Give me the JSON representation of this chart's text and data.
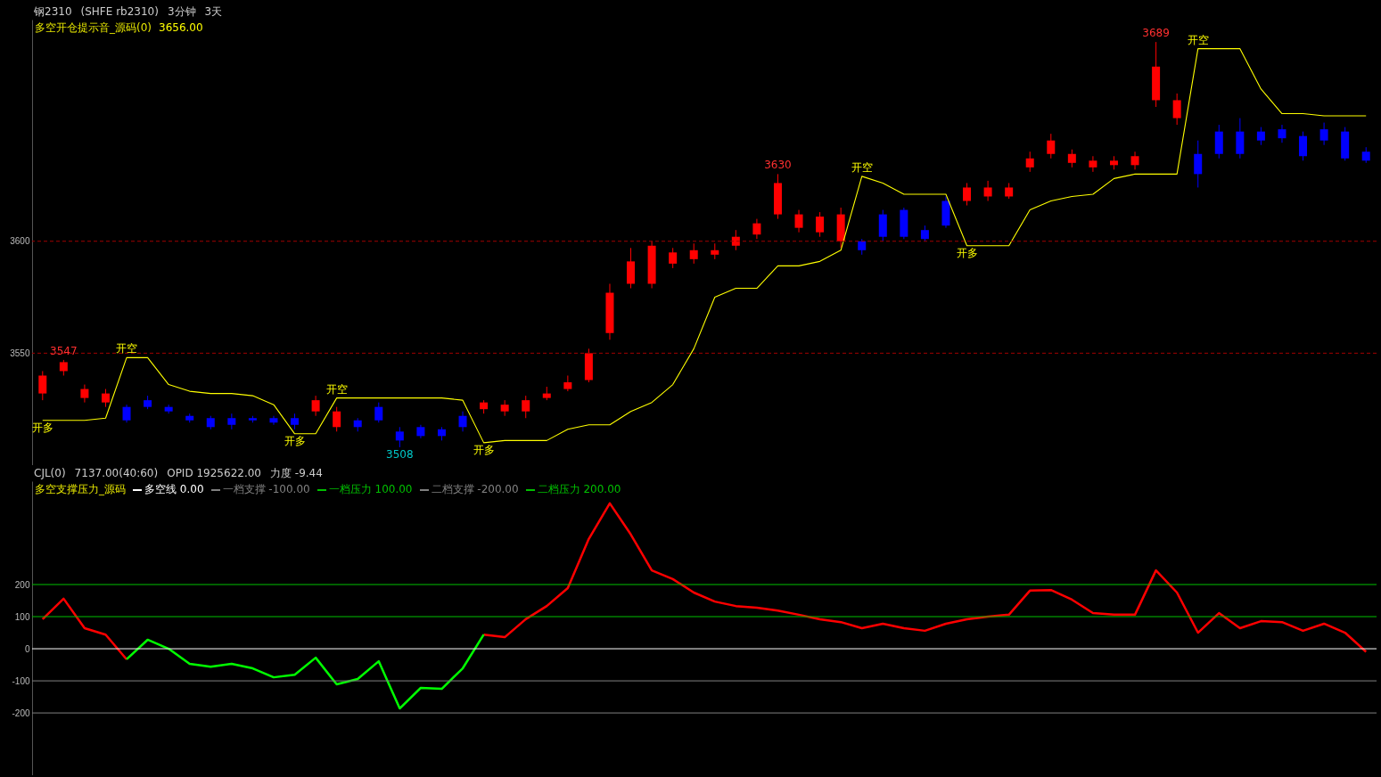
{
  "chart_data": [
    {
      "type": "candlestick",
      "title": "多空开仓提示音_源码(0)",
      "subtitle": "3656.00",
      "categories": [
        null,
        null,
        null,
        null,
        null,
        null,
        null,
        null,
        null,
        null,
        null,
        null,
        null,
        null,
        null,
        null,
        null,
        null,
        null,
        null,
        null,
        null,
        null,
        null,
        null,
        null,
        null,
        null,
        null,
        null,
        null,
        null,
        null,
        null,
        null,
        null,
        null,
        null,
        null,
        null,
        null,
        null,
        null,
        null,
        null,
        null,
        null,
        null,
        null,
        null,
        null,
        null,
        null,
        null,
        null,
        null,
        null,
        null,
        null,
        null,
        null,
        null,
        null,
        null
      ],
      "ohlc": [
        [
          3532,
          3542,
          3529,
          3540
        ],
        [
          3542,
          3547,
          3540,
          3546
        ],
        [
          3530,
          3536,
          3528,
          3534
        ],
        [
          3528,
          3534,
          3526,
          3532
        ],
        [
          3526,
          3527,
          3519,
          3520
        ],
        [
          3529,
          3531,
          3525,
          3526
        ],
        [
          3526,
          3527,
          3523,
          3524
        ],
        [
          3522,
          3523,
          3519,
          3520
        ],
        [
          3521,
          3522,
          3516,
          3517
        ],
        [
          3521,
          3523,
          3516,
          3518
        ],
        [
          3521,
          3522,
          3519,
          3520
        ],
        [
          3521,
          3522,
          3518,
          3519
        ],
        [
          3521,
          3523,
          3516,
          3518
        ],
        [
          3524,
          3531,
          3522,
          3529
        ],
        [
          3517,
          3526,
          3515,
          3524
        ],
        [
          3520,
          3521,
          3515,
          3517
        ],
        [
          3526,
          3528,
          3519,
          3520
        ],
        [
          3515,
          3517,
          3508,
          3511
        ],
        [
          3517,
          3518,
          3512,
          3513
        ],
        [
          3516,
          3517,
          3511,
          3513
        ],
        [
          3522,
          3524,
          3515,
          3517
        ],
        [
          3525,
          3529,
          3523,
          3528
        ],
        [
          3524,
          3529,
          3522,
          3527
        ],
        [
          3524,
          3531,
          3521,
          3529
        ],
        [
          3530,
          3535,
          3529,
          3532
        ],
        [
          3534,
          3540,
          3533,
          3537
        ],
        [
          3538,
          3552,
          3537,
          3550
        ],
        [
          3559,
          3581,
          3556,
          3577
        ],
        [
          3581,
          3597,
          3579,
          3591
        ],
        [
          3581,
          3600,
          3579,
          3598
        ],
        [
          3590,
          3597,
          3588,
          3595
        ],
        [
          3592,
          3599,
          3590,
          3596
        ],
        [
          3594,
          3599,
          3592,
          3596
        ],
        [
          3598,
          3605,
          3596,
          3602
        ],
        [
          3603,
          3610,
          3601,
          3608
        ],
        [
          3612,
          3630,
          3610,
          3626
        ],
        [
          3606,
          3614,
          3604,
          3612
        ],
        [
          3604,
          3613,
          3602,
          3611
        ],
        [
          3600,
          3615,
          3597,
          3612
        ],
        [
          3600,
          3601,
          3594,
          3596
        ],
        [
          3612,
          3614,
          3600,
          3602
        ],
        [
          3614,
          3615,
          3601,
          3602
        ],
        [
          3605,
          3607,
          3600,
          3601
        ],
        [
          3618,
          3620,
          3606,
          3607
        ],
        [
          3618,
          3626,
          3616,
          3624
        ],
        [
          3620,
          3627,
          3618,
          3624
        ],
        [
          3620,
          3626,
          3619,
          3624
        ],
        [
          3633,
          3640,
          3631,
          3637
        ],
        [
          3639,
          3648,
          3637,
          3645
        ],
        [
          3635,
          3641,
          3633,
          3639
        ],
        [
          3633,
          3638,
          3631,
          3636
        ],
        [
          3634,
          3638,
          3632,
          3636
        ],
        [
          3634,
          3640,
          3632,
          3638
        ],
        [
          3663,
          3689,
          3660,
          3678
        ],
        [
          3655,
          3666,
          3652,
          3663
        ],
        [
          3639,
          3645,
          3624,
          3630
        ],
        [
          3649,
          3652,
          3637,
          3639
        ],
        [
          3649,
          3655,
          3637,
          3639
        ],
        [
          3649,
          3651,
          3643,
          3645
        ],
        [
          3650,
          3652,
          3644,
          3646
        ],
        [
          3647,
          3649,
          3636,
          3638
        ],
        [
          3650,
          3653,
          3643,
          3645
        ],
        [
          3649,
          3651,
          3636,
          3637
        ],
        [
          3640,
          3642,
          3635,
          3636
        ]
      ],
      "colors": [
        "#ff0000",
        "#ff0000",
        "#ff0000",
        "#ff0000",
        "#0000ff",
        "#0000ff",
        "#0000ff",
        "#0000ff",
        "#0000ff",
        "#0000ff",
        "#0000ff",
        "#0000ff",
        "#0000ff",
        "#ff0000",
        "#ff0000",
        "#0000ff",
        "#0000ff",
        "#0000ff",
        "#0000ff",
        "#0000ff",
        "#0000ff",
        "#ff0000",
        "#ff0000",
        "#ff0000",
        "#ff0000",
        "#ff0000",
        "#ff0000",
        "#ff0000",
        "#ff0000",
        "#ff0000",
        "#ff0000",
        "#ff0000",
        "#ff0000",
        "#ff0000",
        "#ff0000",
        "#ff0000",
        "#ff0000",
        "#ff0000",
        "#ff0000",
        "#0000ff",
        "#0000ff",
        "#0000ff",
        "#0000ff",
        "#0000ff",
        "#ff0000",
        "#ff0000",
        "#ff0000",
        "#ff0000",
        "#ff0000",
        "#ff0000",
        "#ff0000",
        "#ff0000",
        "#ff0000",
        "#ff0000",
        "#ff0000",
        "#0000ff",
        "#0000ff",
        "#0000ff",
        "#0000ff",
        "#0000ff",
        "#0000ff",
        "#0000ff",
        "#0000ff",
        "#0000ff"
      ],
      "series": [
        {
          "type": "line",
          "color": "#ffff00",
          "values": [
            3520,
            3520,
            3520,
            3521,
            3548,
            3548,
            3536,
            3533,
            3532,
            3532,
            3531,
            3527,
            3514,
            3514,
            3530,
            3530,
            3530,
            3530,
            3530,
            3530,
            3529,
            3510,
            3511,
            3511,
            3511,
            3516,
            3518,
            3518,
            3524,
            3528,
            3536,
            3552,
            3575,
            3579,
            3579,
            3589,
            3589,
            3591,
            3596,
            3629,
            3626,
            3621,
            3621,
            3621,
            3598,
            3598,
            3598,
            3614,
            3618,
            3620,
            3621,
            3628,
            3630,
            3630,
            3630,
            3686,
            3686,
            3686,
            3668,
            3657,
            3657,
            3656,
            3656,
            3656
          ]
        }
      ],
      "ylim": [
        3500,
        3699
      ],
      "yticks": [
        3550,
        3600
      ],
      "ref_lines": [
        {
          "axis": "y",
          "value": 3550,
          "label": null,
          "color": "#a00000",
          "line_style": "dashed"
        },
        {
          "axis": "y",
          "value": 3600,
          "label": null,
          "color": "#a00000",
          "line_style": "dashed"
        }
      ],
      "annotations": [
        "钢2310",
        "(SHFE rb2310)",
        "3分钟",
        "3天",
        {
          "text": "3547",
          "y": 3547
        },
        {
          "text": "3630",
          "y": 3630
        },
        {
          "text": "3689",
          "y": 3689
        },
        {
          "text": "3508",
          "y": 3508
        },
        {
          "text": "开多",
          "y": 3520
        },
        {
          "text": "开空",
          "y": 3548
        },
        {
          "text": "开多",
          "y": 3514
        },
        {
          "text": "开空",
          "y": 3530
        },
        {
          "text": "开多",
          "y": 3510
        },
        {
          "text": "开空",
          "y": 3629
        },
        {
          "text": "开多",
          "y": 3598
        },
        {
          "text": "开空",
          "y": 3686
        }
      ]
    },
    {
      "type": "line",
      "title": "多空支撑压力_源码",
      "categories": [
        null,
        null,
        null,
        null,
        null,
        null,
        null,
        null,
        null,
        null,
        null,
        null,
        null,
        null,
        null,
        null,
        null,
        null,
        null,
        null,
        null,
        null,
        null,
        null,
        null,
        null,
        null,
        null,
        null,
        null,
        null,
        null,
        null,
        null,
        null,
        null,
        null,
        null,
        null,
        null,
        null,
        null,
        null,
        null,
        null,
        null,
        null,
        null,
        null,
        null,
        null,
        null,
        null,
        null,
        null,
        null,
        null,
        null,
        null,
        null,
        null,
        null,
        null,
        null
      ],
      "series": [
        {
          "color": "#ff0000",
          "values": [
            92,
            156,
            64,
            44,
            -33,
            null,
            null,
            null,
            null,
            null,
            null,
            null,
            null,
            null,
            null,
            null,
            null,
            null,
            null,
            null,
            null,
            null,
            null,
            null,
            null,
            null,
            null,
            null,
            null,
            null,
            null,
            null,
            null,
            null,
            null,
            null,
            null,
            null,
            null,
            null,
            null,
            null,
            null,
            null,
            null,
            null,
            null,
            null,
            null,
            null,
            null,
            null,
            null,
            null,
            null,
            null,
            null,
            null,
            null,
            null,
            null,
            null,
            null,
            null
          ]
        },
        {
          "color": "#ff0000",
          "values": [
            null,
            null,
            null,
            null,
            null,
            null,
            null,
            null,
            null,
            null,
            null,
            null,
            null,
            null,
            null,
            null,
            null,
            null,
            null,
            null,
            null,
            44,
            36,
            92,
            133,
            189,
            342,
            453,
            356,
            244,
            217,
            175,
            147,
            133,
            128,
            119,
            106,
            92,
            83,
            64,
            78,
            64,
            56,
            78,
            92,
            100,
            106,
            181,
            183,
            153,
            111,
            106,
            106,
            244,
            175,
            50,
            111,
            64,
            86,
            83,
            56,
            78,
            50,
            -9.44
          ]
        },
        {
          "color": "#00ff00",
          "values": [
            null,
            null,
            null,
            null,
            -33,
            28,
            0,
            -47,
            -56,
            -47,
            -61,
            -89,
            -81,
            -28,
            -111,
            -94,
            -39,
            -186,
            -122,
            -125,
            -61,
            44,
            null,
            null,
            null,
            null,
            null,
            null,
            null,
            null,
            null,
            null,
            null,
            null,
            null,
            null,
            null,
            null,
            null,
            null,
            null,
            null,
            null,
            null,
            null,
            null,
            null,
            null,
            null,
            null,
            null,
            null,
            null,
            null,
            null,
            null,
            null,
            null,
            null,
            null,
            null,
            null,
            null,
            null
          ]
        }
      ],
      "ylim": [
        -394,
        522
      ],
      "yticks": [
        -200,
        -100,
        0,
        100,
        200
      ],
      "legend": "top left",
      "ref_lines": [
        {
          "axis": "y",
          "value": 0,
          "label": "多空线 0.00",
          "color": "#ffffff"
        },
        {
          "axis": "y",
          "value": -100,
          "label": "一档支撑 -100.00",
          "color": "#808080"
        },
        {
          "axis": "y",
          "value": 100,
          "label": "一档压力 100.00",
          "color": "#00c000"
        },
        {
          "axis": "y",
          "value": -200,
          "label": "二档支撑 -200.00",
          "color": "#808080"
        },
        {
          "axis": "y",
          "value": 200,
          "label": "二档压力 200.00",
          "color": "#00c000"
        }
      ],
      "annotations": [
        "CJL(0)",
        "7137.00(40:60)",
        "OPID 1925622.00",
        "力度 -9.44"
      ]
    }
  ]
}
